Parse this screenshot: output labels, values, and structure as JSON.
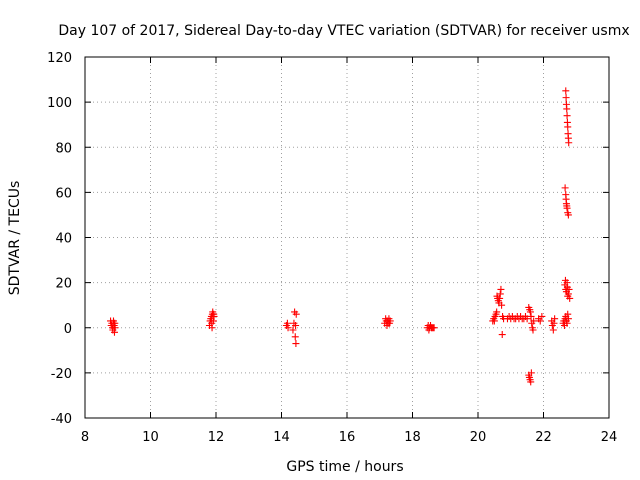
{
  "chart_data": {
    "type": "scatter",
    "title": "Day 107 of 2017, Sidereal Day-to-day VTEC variation (SDTVAR) for receiver usmx",
    "xlabel": "GPS time / hours",
    "ylabel": "SDTVAR / TECUs",
    "xlim": [
      8,
      24
    ],
    "ylim": [
      -40,
      120
    ],
    "xticks": [
      "8",
      "10",
      "12",
      "14",
      "16",
      "18",
      "20",
      "22",
      "24"
    ],
    "yticks": [
      "-40",
      "-20",
      "0",
      "20",
      "40",
      "60",
      "80",
      "100",
      "120"
    ],
    "grid": true,
    "marker": "+",
    "color": "#ff0000",
    "series": [
      {
        "name": "SDTVAR",
        "points": [
          [
            8.78,
            3
          ],
          [
            8.8,
            1
          ],
          [
            8.82,
            2
          ],
          [
            8.84,
            0
          ],
          [
            8.85,
            -1
          ],
          [
            8.87,
            3
          ],
          [
            8.88,
            2
          ],
          [
            8.89,
            1
          ],
          [
            8.9,
            -2
          ],
          [
            8.91,
            2
          ],
          [
            8.92,
            0
          ],
          [
            11.8,
            1
          ],
          [
            11.82,
            3
          ],
          [
            11.84,
            4
          ],
          [
            11.86,
            5
          ],
          [
            11.87,
            2
          ],
          [
            11.88,
            0
          ],
          [
            11.89,
            6
          ],
          [
            11.9,
            7
          ],
          [
            11.92,
            3
          ],
          [
            11.93,
            6
          ],
          [
            11.94,
            5
          ],
          [
            14.15,
            1
          ],
          [
            14.18,
            2
          ],
          [
            14.2,
            0
          ],
          [
            14.35,
            -1
          ],
          [
            14.38,
            2
          ],
          [
            14.4,
            7
          ],
          [
            14.42,
            -4
          ],
          [
            14.43,
            1
          ],
          [
            14.44,
            -7
          ],
          [
            14.45,
            6
          ],
          [
            17.15,
            2
          ],
          [
            17.18,
            4
          ],
          [
            17.2,
            3
          ],
          [
            17.22,
            1
          ],
          [
            17.24,
            3
          ],
          [
            17.26,
            2
          ],
          [
            17.28,
            4
          ],
          [
            17.3,
            2
          ],
          [
            17.32,
            3
          ],
          [
            18.45,
            0
          ],
          [
            18.48,
            1
          ],
          [
            18.5,
            -1
          ],
          [
            18.52,
            0
          ],
          [
            18.55,
            1
          ],
          [
            18.58,
            0
          ],
          [
            18.6,
            0
          ],
          [
            18.63,
            0
          ],
          [
            18.66,
            0
          ],
          [
            20.45,
            3
          ],
          [
            20.48,
            4
          ],
          [
            20.5,
            3
          ],
          [
            20.52,
            5
          ],
          [
            20.55,
            6
          ],
          [
            20.57,
            7
          ],
          [
            20.58,
            14
          ],
          [
            20.6,
            13
          ],
          [
            20.62,
            12
          ],
          [
            20.64,
            11
          ],
          [
            20.66,
            13
          ],
          [
            20.68,
            15
          ],
          [
            20.7,
            17
          ],
          [
            20.72,
            10
          ],
          [
            20.74,
            -3
          ],
          [
            20.75,
            5
          ],
          [
            20.78,
            4
          ],
          [
            20.9,
            4
          ],
          [
            20.95,
            5
          ],
          [
            21.0,
            4
          ],
          [
            21.05,
            5
          ],
          [
            21.1,
            4
          ],
          [
            21.15,
            4
          ],
          [
            21.2,
            5
          ],
          [
            21.25,
            4
          ],
          [
            21.3,
            5
          ],
          [
            21.35,
            4
          ],
          [
            21.4,
            4
          ],
          [
            21.45,
            5
          ],
          [
            21.5,
            4
          ],
          [
            21.55,
            9
          ],
          [
            21.58,
            8
          ],
          [
            21.6,
            7
          ],
          [
            21.62,
            5
          ],
          [
            21.55,
            -21
          ],
          [
            21.57,
            -22
          ],
          [
            21.59,
            -23
          ],
          [
            21.61,
            -24
          ],
          [
            21.63,
            -20
          ],
          [
            21.64,
            2
          ],
          [
            21.66,
            0
          ],
          [
            21.68,
            -1
          ],
          [
            21.7,
            3
          ],
          [
            21.85,
            4
          ],
          [
            21.9,
            3
          ],
          [
            21.95,
            5
          ],
          [
            22.25,
            3
          ],
          [
            22.27,
            1
          ],
          [
            22.3,
            -1
          ],
          [
            22.32,
            2
          ],
          [
            22.34,
            4
          ],
          [
            22.6,
            2
          ],
          [
            22.62,
            3
          ],
          [
            22.64,
            1
          ],
          [
            22.66,
            4
          ],
          [
            22.68,
            5
          ],
          [
            22.7,
            3
          ],
          [
            22.72,
            2
          ],
          [
            22.74,
            6
          ],
          [
            22.76,
            4
          ],
          [
            22.65,
            19
          ],
          [
            22.67,
            21
          ],
          [
            22.68,
            17
          ],
          [
            22.7,
            16
          ],
          [
            22.72,
            20
          ],
          [
            22.73,
            18
          ],
          [
            22.74,
            14
          ],
          [
            22.76,
            15
          ],
          [
            22.78,
            17
          ],
          [
            22.8,
            13
          ],
          [
            22.66,
            62
          ],
          [
            22.68,
            59
          ],
          [
            22.69,
            57
          ],
          [
            22.7,
            55
          ],
          [
            22.71,
            54
          ],
          [
            22.72,
            53
          ],
          [
            22.74,
            51
          ],
          [
            22.76,
            50
          ],
          [
            22.68,
            105
          ],
          [
            22.69,
            102
          ],
          [
            22.7,
            99
          ],
          [
            22.71,
            97
          ],
          [
            22.72,
            94
          ],
          [
            22.73,
            91
          ],
          [
            22.74,
            89
          ],
          [
            22.75,
            86
          ],
          [
            22.76,
            84
          ],
          [
            22.77,
            82
          ]
        ]
      }
    ]
  }
}
